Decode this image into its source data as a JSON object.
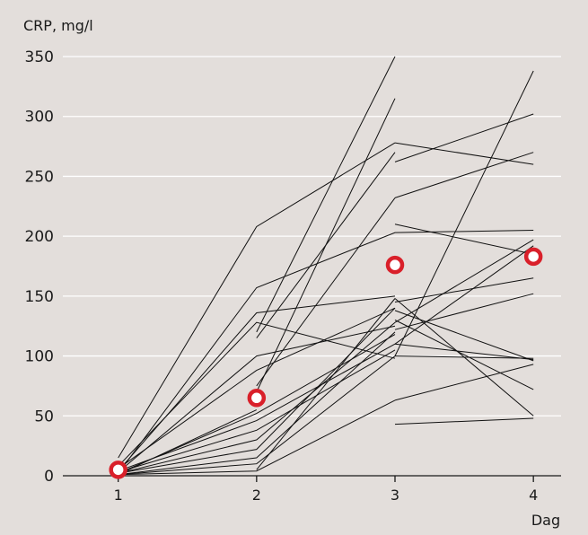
{
  "chart_data": {
    "type": "line",
    "title": "",
    "ylabel": "CRP, mg/l",
    "xlabel": "Dag",
    "x": [
      1,
      2,
      3,
      4
    ],
    "ylim": [
      0,
      350
    ],
    "xlim": [
      0.6,
      4.2
    ],
    "xticks": [
      "1",
      "2",
      "3",
      "4"
    ],
    "yticks": [
      "0",
      "50",
      "100",
      "150",
      "200",
      "250",
      "300",
      "350"
    ],
    "grid": true,
    "colors": {
      "background": "#e3dedb",
      "grid": "#ffffff",
      "line": "#111111",
      "marker": "#d9202a"
    },
    "series": [
      {
        "x": [
          1,
          2,
          3
        ],
        "values": [
          15,
          208,
          278
        ]
      },
      {
        "x": [
          1,
          2,
          3,
          4
        ],
        "values": [
          2,
          157,
          203,
          205
        ]
      },
      {
        "x": [
          1,
          2,
          3
        ],
        "values": [
          4,
          136,
          150
        ]
      },
      {
        "x": [
          1,
          2,
          3
        ],
        "values": [
          8,
          128,
          98
        ]
      },
      {
        "x": [
          1,
          2,
          3
        ],
        "values": [
          3,
          100,
          125
        ]
      },
      {
        "x": [
          1,
          2,
          3
        ],
        "values": [
          6,
          88,
          140
        ]
      },
      {
        "x": [
          1,
          2,
          3
        ],
        "values": [
          2,
          52,
          118
        ]
      },
      {
        "x": [
          1,
          2,
          3
        ],
        "values": [
          4,
          46,
          110
        ]
      },
      {
        "x": [
          1,
          2,
          3
        ],
        "values": [
          3,
          38,
          105
        ]
      },
      {
        "x": [
          1,
          2,
          3
        ],
        "values": [
          2,
          30,
          128
        ]
      },
      {
        "x": [
          1,
          2,
          3
        ],
        "values": [
          2,
          22,
          140
        ]
      },
      {
        "x": [
          1,
          2,
          3
        ],
        "values": [
          1,
          15,
          120
        ]
      },
      {
        "x": [
          1,
          2,
          3
        ],
        "values": [
          1,
          10,
          100
        ]
      },
      {
        "x": [
          1,
          2,
          3
        ],
        "values": [
          1,
          4,
          63
        ]
      },
      {
        "x": [
          1,
          2
        ],
        "values": [
          1,
          55
        ]
      },
      {
        "x": [
          2,
          3
        ],
        "values": [
          115,
          270
        ]
      },
      {
        "x": [
          2,
          3
        ],
        "values": [
          120,
          350
        ]
      },
      {
        "x": [
          2,
          3
        ],
        "values": [
          70,
          315
        ]
      },
      {
        "x": [
          2,
          3
        ],
        "values": [
          75,
          232
        ]
      },
      {
        "x": [
          2,
          3
        ],
        "values": [
          5,
          148
        ]
      },
      {
        "x": [
          3,
          4
        ],
        "values": [
          262,
          302
        ]
      },
      {
        "x": [
          3,
          4
        ],
        "values": [
          278,
          260
        ]
      },
      {
        "x": [
          3,
          4
        ],
        "values": [
          232,
          270
        ]
      },
      {
        "x": [
          3,
          4
        ],
        "values": [
          210,
          185
        ]
      },
      {
        "x": [
          3,
          4
        ],
        "values": [
          100,
          338
        ]
      },
      {
        "x": [
          3,
          4
        ],
        "values": [
          128,
          197
        ]
      },
      {
        "x": [
          3,
          4
        ],
        "values": [
          110,
          192
        ]
      },
      {
        "x": [
          3,
          4
        ],
        "values": [
          145,
          165
        ]
      },
      {
        "x": [
          3,
          4
        ],
        "values": [
          122,
          152
        ]
      },
      {
        "x": [
          3,
          4
        ],
        "values": [
          138,
          96
        ]
      },
      {
        "x": [
          3,
          4
        ],
        "values": [
          130,
          72
        ]
      },
      {
        "x": [
          3,
          4
        ],
        "values": [
          148,
          50
        ]
      },
      {
        "x": [
          3,
          4
        ],
        "values": [
          110,
          97
        ]
      },
      {
        "x": [
          3,
          4
        ],
        "values": [
          63,
          93
        ]
      },
      {
        "x": [
          3,
          4
        ],
        "values": [
          43,
          48
        ]
      },
      {
        "x": [
          3,
          4
        ],
        "values": [
          100,
          98
        ]
      }
    ],
    "mean_markers": [
      {
        "x": 1,
        "y": 5
      },
      {
        "x": 2,
        "y": 65
      },
      {
        "x": 3,
        "y": 176
      },
      {
        "x": 4,
        "y": 183
      }
    ]
  }
}
